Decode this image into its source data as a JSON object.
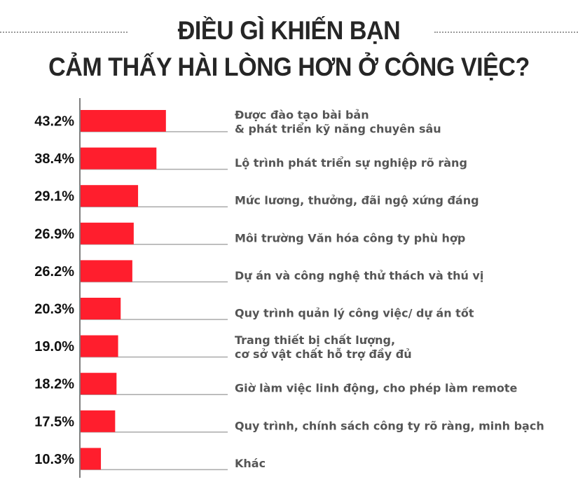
{
  "title_line1": "ĐIỀU GÌ KHIẾN BẠN",
  "title_line2": "CẢM THẤY HÀI LÒNG HƠN Ở CÔNG VIỆC?",
  "chart_data": {
    "type": "bar",
    "orientation": "horizontal",
    "title": "ĐIỀU GÌ KHIẾN BẠN CẢM THẤY HÀI LÒNG HƠN Ở CÔNG VIỆC?",
    "categories": [
      [
        "Được đào tạo bài bản",
        "& phát triển kỹ năng chuyên sâu"
      ],
      [
        "Lộ trình phát triển sự nghiệp rõ ràng"
      ],
      [
        "Mức lương, thưởng, đãi ngộ xứng đáng"
      ],
      [
        "Môi trường Văn hóa công ty phù hợp"
      ],
      [
        "Dự án và công nghệ thử thách và thú vị"
      ],
      [
        "Quy trình quản lý công việc/ dự án tốt"
      ],
      [
        "Trang thiết bị chất lượng,",
        "cơ sở vật chất hỗ trợ đầy đủ"
      ],
      [
        "Giờ làm việc linh động, cho phép làm remote"
      ],
      [
        "Quy trình, chính sách công ty rõ ràng, minh bạch"
      ],
      [
        "Khác"
      ]
    ],
    "values": [
      43.2,
      38.4,
      29.1,
      26.9,
      26.2,
      20.3,
      19.0,
      18.2,
      17.5,
      10.3
    ],
    "value_labels": [
      "43.2%",
      "38.4%",
      "29.1%",
      "26.9%",
      "26.2%",
      "20.3%",
      "19.0%",
      "18.2%",
      "17.5%",
      "10.3%"
    ],
    "unit": "%",
    "bar_color": "#ff1e2d",
    "grid": false,
    "legend": "none"
  }
}
